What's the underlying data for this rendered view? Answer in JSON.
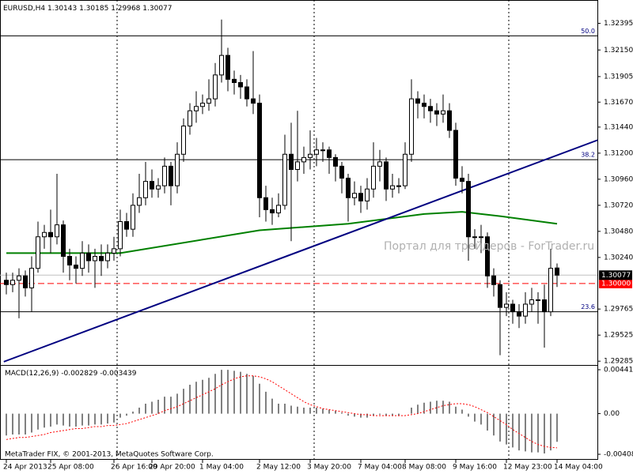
{
  "chart_data": {
    "type": "candlestick",
    "symbol": "EURUSD,H4",
    "categories": [
      "24 Apr 2013",
      null,
      null,
      null,
      null,
      null,
      null,
      "25 Apr 08:00",
      null,
      null,
      null,
      null,
      null,
      null,
      null,
      null,
      null,
      "26 Apr 16:00",
      null,
      null,
      null,
      null,
      null,
      "29 Apr 20:00",
      null,
      null,
      null,
      null,
      null,
      null,
      null,
      "1 May 04:00",
      null,
      null,
      null,
      null,
      null,
      null,
      null,
      null,
      "2 May 12:00",
      null,
      null,
      null,
      null,
      null,
      null,
      null,
      "3 May 20:00",
      null,
      null,
      null,
      null,
      null,
      null,
      null,
      "7 May 04:00",
      null,
      null,
      null,
      null,
      null,
      null,
      "8 May 08:00",
      null,
      null,
      null,
      null,
      null,
      null,
      null,
      "9 May 16:00",
      null,
      null,
      null,
      null,
      null,
      null,
      null,
      "12 May 23:00",
      null,
      null,
      null,
      null,
      null,
      null,
      null,
      "14 May 04:00"
    ],
    "open": [
      1.3003,
      1.2999,
      1.3003,
      1.3007,
      1.2996,
      1.3014,
      1.3043,
      1.3047,
      1.3043,
      1.3054,
      1.3025,
      1.3017,
      1.3014,
      1.3028,
      1.3021,
      1.3025,
      1.3021,
      1.3028,
      1.3032,
      1.3057,
      1.305,
      1.3072,
      1.3079,
      1.3094,
      1.3087,
      1.309,
      1.3108,
      1.309,
      1.3119,
      1.3145,
      1.3159,
      1.3163,
      1.3166,
      1.317,
      1.3192,
      1.321,
      1.3188,
      1.3185,
      1.3181,
      1.317,
      1.3166,
      1.3079,
      1.3068,
      1.3065,
      1.3072,
      1.3119,
      1.3105,
      1.3112,
      1.3116,
      1.3119,
      1.3123,
      1.3123,
      1.3116,
      1.3108,
      1.3097,
      1.3079,
      1.3083,
      1.3076,
      1.3087,
      1.3108,
      1.3112,
      1.3087,
      1.309,
      1.309,
      1.3119,
      1.317,
      1.3166,
      1.3163,
      1.3159,
      1.3156,
      1.3159,
      1.3141,
      1.3097,
      1.3094,
      1.3043,
      1.3043,
      1.3043,
      1.3007,
      1.2999,
      1.2978,
      1.2981,
      1.2974,
      1.297,
      1.2981,
      1.2985,
      1.2985,
      1.2974,
      1.30143
    ],
    "high": [
      1.301,
      1.301,
      1.3014,
      1.3012,
      1.3025,
      1.3057,
      1.3054,
      1.3068,
      1.3101,
      1.3058,
      1.3032,
      1.3025,
      1.3039,
      1.3036,
      1.3032,
      1.3036,
      1.3036,
      1.3043,
      1.3068,
      1.3065,
      1.3083,
      1.3101,
      1.3112,
      1.3105,
      1.3097,
      1.3116,
      1.3112,
      1.313,
      1.3152,
      1.3166,
      1.3177,
      1.3174,
      1.3188,
      1.3203,
      1.3243,
      1.3217,
      1.3196,
      1.3192,
      1.3188,
      1.3214,
      1.3174,
      1.309,
      1.3079,
      1.3083,
      1.3137,
      1.3148,
      1.3159,
      1.3126,
      1.3141,
      1.3134,
      1.313,
      1.3126,
      1.3119,
      1.3112,
      1.3101,
      1.3094,
      1.309,
      1.3097,
      1.313,
      1.3123,
      1.3116,
      1.3101,
      1.3097,
      1.313,
      1.3188,
      1.3177,
      1.3174,
      1.317,
      1.3166,
      1.3174,
      1.3166,
      1.3148,
      1.3108,
      1.3101,
      1.305,
      1.3054,
      1.3047,
      1.3014,
      1.3003,
      1.2992,
      1.2985,
      1.2981,
      1.2992,
      1.2996,
      1.2992,
      1.2999,
      1.3032,
      1.30185
    ],
    "low": [
      1.299,
      1.2992,
      1.2968,
      1.2988,
      1.2974,
      1.301,
      1.3032,
      1.3028,
      1.3036,
      1.301,
      1.3003,
      1.3,
      1.3007,
      1.301,
      1.2996,
      1.3007,
      1.3014,
      1.3021,
      1.3025,
      1.3043,
      1.3043,
      1.3065,
      1.3072,
      1.3079,
      1.3079,
      1.3083,
      1.3072,
      1.3083,
      1.3112,
      1.3137,
      1.3148,
      1.3156,
      1.3159,
      1.3163,
      1.3185,
      1.3177,
      1.3174,
      1.317,
      1.3163,
      1.3156,
      1.3061,
      1.3057,
      1.3054,
      1.3061,
      1.3068,
      1.3039,
      1.3094,
      1.3101,
      1.3105,
      1.3108,
      1.3112,
      1.3101,
      1.3094,
      1.3083,
      1.3057,
      1.3072,
      1.3065,
      1.3068,
      1.3079,
      1.3094,
      1.3076,
      1.3079,
      1.3083,
      1.3087,
      1.3112,
      1.3152,
      1.3152,
      1.3148,
      1.3145,
      1.3148,
      1.3134,
      1.309,
      1.3083,
      1.3021,
      1.3032,
      1.3028,
      1.2996,
      1.2988,
      1.2934,
      1.297,
      1.2963,
      1.2959,
      1.2963,
      1.2974,
      1.2963,
      1.2941,
      1.297,
      1.29968
    ],
    "close": [
      1.2999,
      1.3003,
      1.3007,
      1.2996,
      1.3014,
      1.3043,
      1.3047,
      1.3043,
      1.3054,
      1.3025,
      1.3017,
      1.3014,
      1.3028,
      1.3021,
      1.3025,
      1.3021,
      1.3028,
      1.3032,
      1.3057,
      1.305,
      1.3072,
      1.3079,
      1.3094,
      1.3087,
      1.309,
      1.3108,
      1.309,
      1.3119,
      1.3145,
      1.3159,
      1.3163,
      1.3166,
      1.317,
      1.3192,
      1.321,
      1.3188,
      1.3185,
      1.3181,
      1.317,
      1.3166,
      1.3079,
      1.3068,
      1.3065,
      1.3072,
      1.3119,
      1.3105,
      1.3112,
      1.3116,
      1.3119,
      1.3123,
      1.3123,
      1.3116,
      1.3108,
      1.3097,
      1.3079,
      1.3083,
      1.3076,
      1.3087,
      1.3108,
      1.3112,
      1.3087,
      1.309,
      1.309,
      1.3119,
      1.317,
      1.3166,
      1.3163,
      1.3159,
      1.3156,
      1.3159,
      1.3141,
      1.3097,
      1.3094,
      1.3043,
      1.3043,
      1.3043,
      1.3007,
      1.2999,
      1.2978,
      1.2981,
      1.2974,
      1.297,
      1.2981,
      1.2985,
      1.2985,
      1.2974,
      1.3014,
      1.30077
    ],
    "ylim": [
      1.2925,
      1.3261
    ],
    "yticks": [
      1.32395,
      {
        "value": 1.3215,
        "label": "1.32150"
      },
      1.31905,
      {
        "value": 1.3167,
        "label": "1.31670"
      },
      {
        "value": 1.3144,
        "label": "1.31440"
      },
      {
        "value": 1.312,
        "label": "1.31200"
      },
      {
        "value": 1.3096,
        "label": "1.30960"
      },
      {
        "value": 1.3072,
        "label": "1.30720"
      },
      {
        "value": 1.3048,
        "label": "1.30480"
      },
      {
        "value": 1.3024,
        "label": "1.30240"
      },
      1.29765,
      1.29525,
      1.29285
    ],
    "moving_average": {
      "color": "#008000",
      "x": [
        0,
        18,
        40,
        54,
        66,
        72,
        78,
        87
      ],
      "values": [
        1.3028,
        1.3028,
        1.3049,
        1.3055,
        1.3064,
        1.3066,
        1.3062,
        1.3055
      ]
    },
    "trendline": {
      "color": "#000080",
      "x": [
        -0.4,
        93.4
      ],
      "values": [
        1.2928,
        1.3132
      ]
    },
    "fibo": [
      {
        "label": "50.0",
        "price": 1.3228
      },
      {
        "label": "38.2",
        "price": 1.3114
      },
      {
        "label": "23.6",
        "price": 1.2974
      }
    ],
    "hline": {
      "value": 1.3,
      "label": "1.30000",
      "color": "#ff0000"
    },
    "watermark": "Портал для трейдеров - ForTrader.ru",
    "footer": "MetaTrader FIX, © 2001-2013, MetaQuotes Software Corp.",
    "macd": {
      "name": "MACD(12,26,9)",
      "ylim": [
        -0.00464,
        0.00481
      ],
      "yticks": [
        0.004414,
        {
          "value": 0,
          "label": "0.00"
        },
        -0.004087
      ],
      "histogram": [
        -0.0022,
        -0.0021,
        -0.0021,
        -0.0021,
        -0.0019,
        -0.0016,
        -0.0014,
        -0.0013,
        -0.0011,
        -0.0012,
        -0.0013,
        -0.0013,
        -0.0012,
        -0.0012,
        -0.0011,
        -0.0011,
        -0.001,
        -0.0009,
        -0.0004,
        -0.0002,
        0.0002,
        0.0006,
        0.001,
        0.0012,
        0.0014,
        0.0017,
        0.0017,
        0.002,
        0.0025,
        0.0029,
        0.0032,
        0.0034,
        0.0036,
        0.004,
        0.0044,
        0.0044,
        0.0043,
        0.0042,
        0.004,
        0.0038,
        0.003,
        0.0022,
        0.0015,
        0.001,
        0.001,
        0.0008,
        0.0007,
        0.0006,
        0.0006,
        0.0006,
        0.0005,
        0.0004,
        0.0003,
        0.0001,
        -0.0002,
        -0.0003,
        -0.0004,
        -0.0004,
        -0.0002,
        -0.0001,
        -0.0002,
        -0.0002,
        -0.0002,
        0.0,
        0.0006,
        0.0009,
        0.0011,
        0.0012,
        0.0013,
        0.0013,
        0.0012,
        0.0007,
        0.0004,
        -0.0003,
        -0.0008,
        -0.0011,
        -0.0017,
        -0.0022,
        -0.0028,
        -0.0031,
        -0.0034,
        -0.0037,
        -0.0038,
        -0.0039,
        -0.0039,
        -0.004,
        -0.0037,
        -0.002829
      ],
      "signal": [
        -0.0026,
        -0.0025,
        -0.0024,
        -0.0024,
        -0.0023,
        -0.0022,
        -0.0021,
        -0.0019,
        -0.0018,
        -0.0017,
        -0.0016,
        -0.0015,
        -0.0015,
        -0.0014,
        -0.0013,
        -0.0013,
        -0.0012,
        -0.0012,
        -0.0011,
        -0.001,
        -0.0008,
        -0.0006,
        -0.0004,
        -0.0002,
        0.0,
        0.0003,
        0.0005,
        0.0007,
        0.001,
        0.0013,
        0.0016,
        0.0019,
        0.0022,
        0.0025,
        0.0029,
        0.0032,
        0.0035,
        0.0037,
        0.0038,
        0.0038,
        0.0037,
        0.0035,
        0.0032,
        0.0028,
        0.0024,
        0.002,
        0.0016,
        0.0012,
        0.0009,
        0.0007,
        0.0005,
        0.0004,
        0.0003,
        0.0002,
        0.0001,
        0.0,
        -0.0001,
        -0.0001,
        -0.0002,
        -0.0002,
        -0.0002,
        -0.0002,
        -0.0002,
        -0.0002,
        -0.0001,
        0.0,
        0.0002,
        0.0004,
        0.0006,
        0.0008,
        0.0009,
        0.001,
        0.001,
        0.0009,
        0.0007,
        0.0004,
        0.0001,
        -0.0003,
        -0.0007,
        -0.0011,
        -0.0016,
        -0.002,
        -0.0024,
        -0.0028,
        -0.0031,
        -0.0033,
        -0.0034,
        -0.003439
      ],
      "signal_color": "#ff0000"
    }
  }
}
